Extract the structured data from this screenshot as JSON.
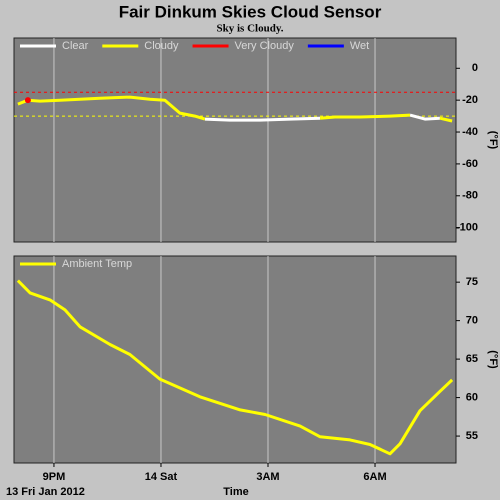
{
  "title": "Fair Dinkum Skies Cloud Sensor",
  "subtitle": "Sky is Cloudy.",
  "date_label": "13 Fri Jan 2012",
  "chart_data": [
    {
      "type": "line",
      "ylabel": "(°F)",
      "x": [
        19.99,
        20.27,
        20.61,
        21.17,
        21.73,
        22.29,
        23.13,
        23.69,
        24.11,
        24.53,
        24.95,
        25.23,
        25.93,
        26.78,
        27.62,
        28.46,
        28.88,
        29.58,
        30.42,
        30.98,
        31.4,
        31.82,
        32.16
      ],
      "series": [
        {
          "name": "Clear",
          "color": "#ffffff",
          "values": [
            null,
            null,
            null,
            null,
            null,
            null,
            null,
            null,
            null,
            null,
            null,
            -31.9,
            -32.5,
            -32.5,
            -31.9,
            -31.3,
            null,
            null,
            null,
            -29.4,
            -31.9,
            -31.3,
            null
          ]
        },
        {
          "name": "Cloudy",
          "color": "#ffff00",
          "values": [
            -22.5,
            -20,
            -20.6,
            -20,
            -19.4,
            -18.8,
            -18.1,
            -19.4,
            -20,
            -28.1,
            -30,
            -31.9,
            null,
            null,
            null,
            -31.3,
            -30.6,
            -30.6,
            -30,
            -29.4,
            null,
            -31.3,
            -33.1
          ]
        },
        {
          "name": "Very Cloudy",
          "color": "#ff0000",
          "values": [
            null,
            -20,
            null,
            null,
            null,
            null,
            null,
            null,
            null,
            null,
            null,
            null,
            null,
            null,
            null,
            null,
            null,
            null,
            null,
            null,
            null,
            null,
            null
          ]
        },
        {
          "name": "Wet",
          "color": "#0000ff",
          "values": [
            null,
            null,
            null,
            null,
            null,
            null,
            null,
            null,
            null,
            null,
            null,
            null,
            null,
            null,
            null,
            null,
            null,
            null,
            null,
            null,
            null,
            null,
            null
          ]
        }
      ],
      "thresholds": [
        {
          "value": -15,
          "color": "#ff0000"
        },
        {
          "value": -30,
          "color": "#ffff00"
        }
      ],
      "xlim": [
        19.88,
        32.27
      ],
      "ylim": [
        -109,
        19
      ],
      "yticks": [
        0,
        -20,
        -40,
        -60,
        -80,
        -100
      ]
    },
    {
      "type": "line",
      "ylabel": "(°F)",
      "xlabel": "Time",
      "x": [
        19.99,
        20.33,
        20.89,
        21.31,
        21.73,
        22.57,
        23.13,
        23.97,
        25.09,
        26.22,
        26.92,
        27.9,
        28.46,
        29.3,
        29.86,
        30.42,
        30.7,
        31.26,
        31.82,
        32.16
      ],
      "series": [
        {
          "name": "Ambient Temp",
          "color": "#ffff00",
          "values": [
            75.2,
            73.6,
            72.7,
            71.4,
            69.2,
            66.9,
            65.6,
            62.4,
            60.1,
            58.4,
            57.8,
            56.3,
            54.9,
            54.5,
            53.9,
            52.7,
            54,
            58.3,
            60.8,
            62.3
          ]
        }
      ],
      "xlim": [
        19.88,
        32.27
      ],
      "ylim": [
        51.5,
        78.4
      ],
      "xticks": [
        {
          "value": 21,
          "label": "9PM"
        },
        {
          "value": 24,
          "label": "14 Sat"
        },
        {
          "value": 27,
          "label": "3AM"
        },
        {
          "value": 30,
          "label": "6AM"
        }
      ],
      "yticks": [
        75,
        70,
        65,
        60,
        55
      ]
    }
  ]
}
